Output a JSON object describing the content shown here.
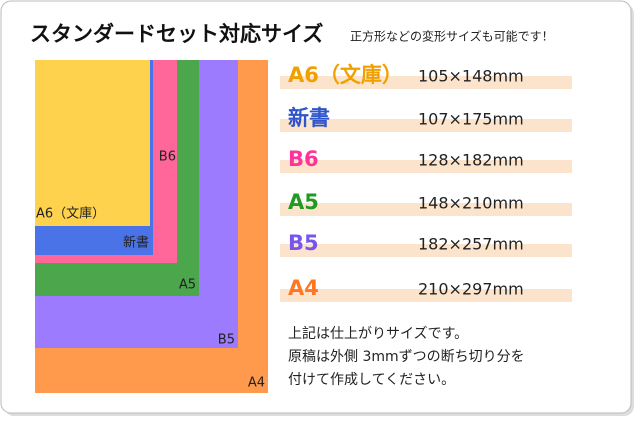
{
  "header": {
    "title": "スタンダードセット対応サイズ",
    "subtitle": "正方形などの変形サイズも可能です！"
  },
  "diagram": {
    "labels": [
      "A6（文庫）",
      "新書",
      "B6",
      "A5",
      "B5",
      "A4"
    ]
  },
  "sizes": {
    "rows": [
      {
        "name": "A6（文庫）",
        "dimensions": "105×148mm"
      },
      {
        "name": "新書",
        "dimensions": "107×175mm"
      },
      {
        "name": "B6",
        "dimensions": "128×182mm"
      },
      {
        "name": "A5",
        "dimensions": "148×210mm"
      },
      {
        "name": "B5",
        "dimensions": "182×257mm"
      },
      {
        "name": "A4",
        "dimensions": "210×297mm"
      }
    ]
  },
  "note": {
    "lines": [
      "上記は仕上がりサイズです。",
      "原稿は外側 3mmずつの断ち切り分を",
      "付けて作成してください。"
    ]
  }
}
